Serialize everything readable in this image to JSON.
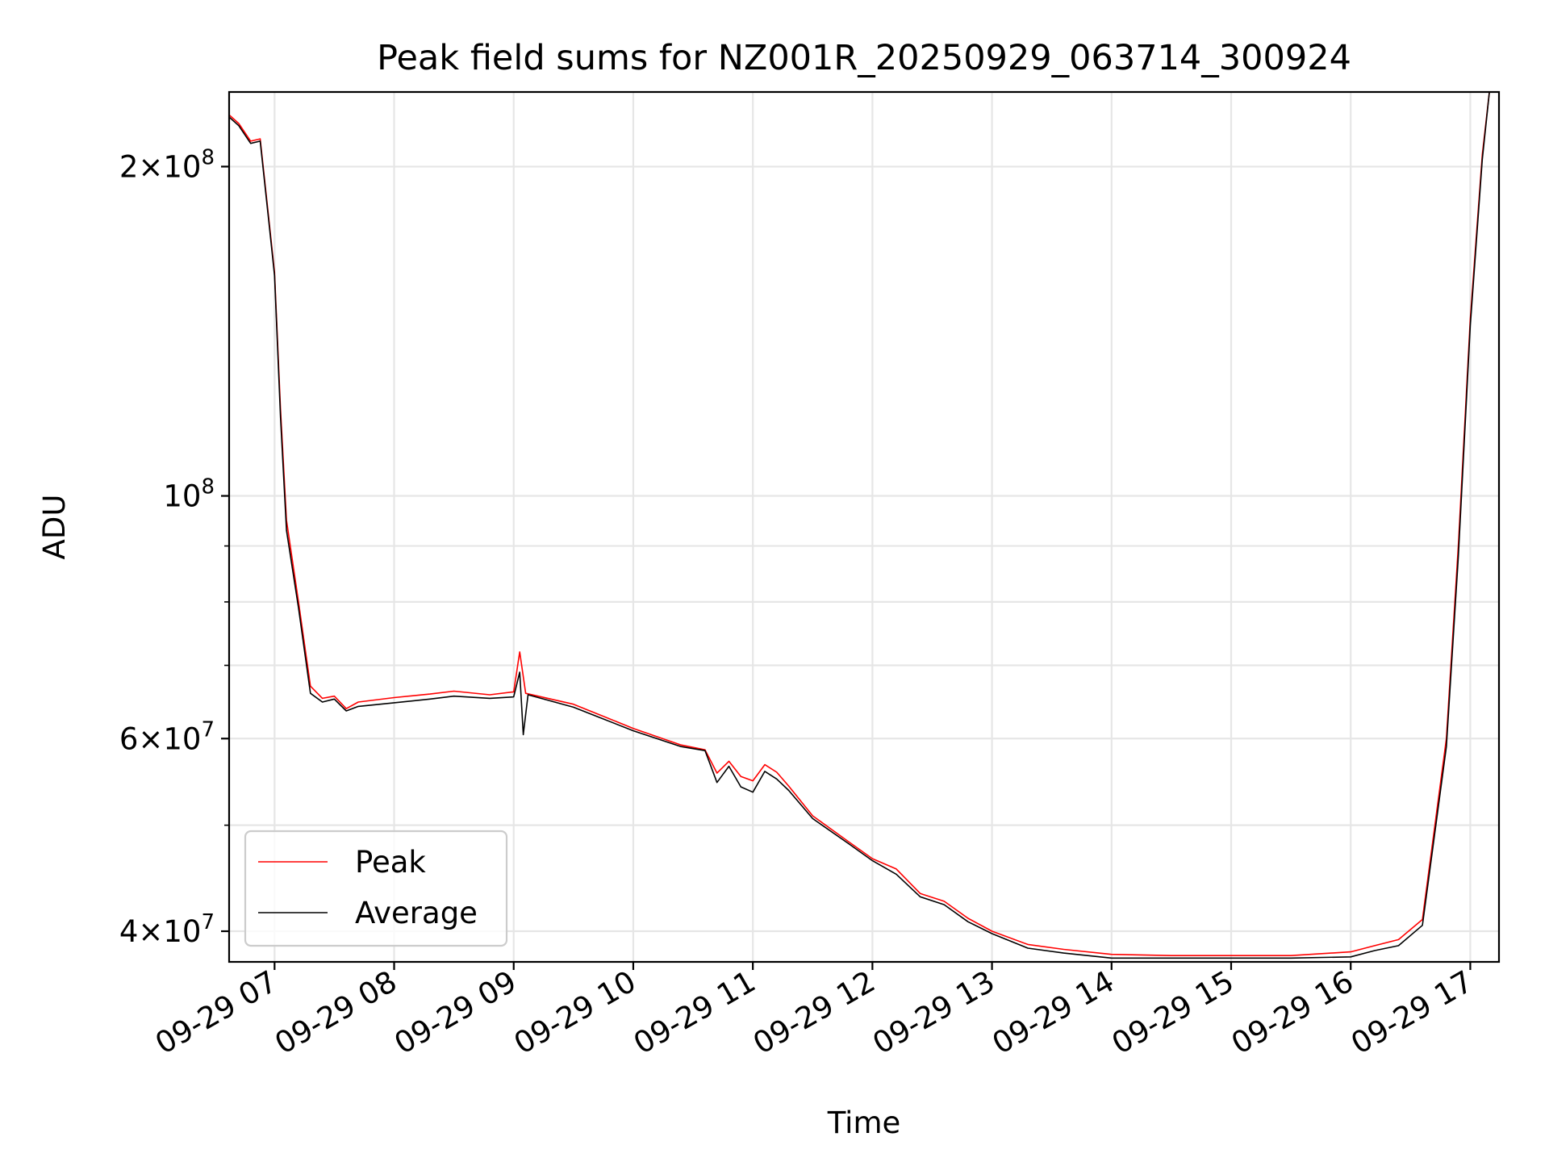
{
  "chart_data": {
    "type": "line",
    "title": "Peak field sums for NZ001R_20250929_063714_300924",
    "xlabel": "Time",
    "ylabel": "ADU",
    "y_scale": "log",
    "grid": true,
    "legend_position": "lower-left",
    "xlim_hours": [
      6.62,
      17.24
    ],
    "ylim": [
      37500000,
      234000000
    ],
    "x_ticks": [
      {
        "hour": 7,
        "label": "09-29 07"
      },
      {
        "hour": 8,
        "label": "09-29 08"
      },
      {
        "hour": 9,
        "label": "09-29 09"
      },
      {
        "hour": 10,
        "label": "09-29 10"
      },
      {
        "hour": 11,
        "label": "09-29 11"
      },
      {
        "hour": 12,
        "label": "09-29 12"
      },
      {
        "hour": 13,
        "label": "09-29 13"
      },
      {
        "hour": 14,
        "label": "09-29 14"
      },
      {
        "hour": 15,
        "label": "09-29 15"
      },
      {
        "hour": 16,
        "label": "09-29 16"
      },
      {
        "hour": 17,
        "label": "09-29 17"
      }
    ],
    "y_major_ticks": [
      {
        "value": 40000000,
        "mantissa": "4",
        "exp": "7"
      },
      {
        "value": 60000000,
        "mantissa": "6",
        "exp": "7"
      },
      {
        "value": 100000000,
        "mantissa": "",
        "exp": "8"
      },
      {
        "value": 200000000,
        "mantissa": "2",
        "exp": "8"
      }
    ],
    "y_minor_gridlines": [
      50000000,
      70000000,
      80000000,
      90000000
    ],
    "series": [
      {
        "name": "Peak",
        "color": "#ff0000",
        "points": [
          [
            6.62,
            223000000
          ],
          [
            6.7,
            219000000
          ],
          [
            6.8,
            211000000
          ],
          [
            6.88,
            212000000
          ],
          [
            6.95,
            180000000
          ],
          [
            7.0,
            160000000
          ],
          [
            7.05,
            120000000
          ],
          [
            7.1,
            95000000
          ],
          [
            7.2,
            80000000
          ],
          [
            7.3,
            67000000
          ],
          [
            7.4,
            65300000
          ],
          [
            7.5,
            65600000
          ],
          [
            7.6,
            63900000
          ],
          [
            7.7,
            64800000
          ],
          [
            8.0,
            65400000
          ],
          [
            8.3,
            65900000
          ],
          [
            8.5,
            66300000
          ],
          [
            8.8,
            65800000
          ],
          [
            9.0,
            66200000
          ],
          [
            9.05,
            72000000
          ],
          [
            9.1,
            66000000
          ],
          [
            9.5,
            64500000
          ],
          [
            10.0,
            61300000
          ],
          [
            10.4,
            59200000
          ],
          [
            10.6,
            58600000
          ],
          [
            10.7,
            55800000
          ],
          [
            10.8,
            57200000
          ],
          [
            10.9,
            55400000
          ],
          [
            11.0,
            54900000
          ],
          [
            11.1,
            56800000
          ],
          [
            11.2,
            55900000
          ],
          [
            11.3,
            54300000
          ],
          [
            11.5,
            51000000
          ],
          [
            11.8,
            48300000
          ],
          [
            12.0,
            46600000
          ],
          [
            12.2,
            45600000
          ],
          [
            12.4,
            43300000
          ],
          [
            12.6,
            42600000
          ],
          [
            12.8,
            41100000
          ],
          [
            13.0,
            40000000
          ],
          [
            13.3,
            38900000
          ],
          [
            13.6,
            38500000
          ],
          [
            14.0,
            38100000
          ],
          [
            14.5,
            38000000
          ],
          [
            15.0,
            38000000
          ],
          [
            15.5,
            38000000
          ],
          [
            16.0,
            38300000
          ],
          [
            16.2,
            38800000
          ],
          [
            16.4,
            39300000
          ],
          [
            16.6,
            41000000
          ],
          [
            16.8,
            60000000
          ],
          [
            16.9,
            90000000
          ],
          [
            17.0,
            145000000
          ],
          [
            17.1,
            205000000
          ],
          [
            17.16,
            234000000
          ]
        ]
      },
      {
        "name": "Average",
        "color": "#000000",
        "points": [
          [
            6.62,
            222000000
          ],
          [
            6.7,
            218000000
          ],
          [
            6.8,
            210000000
          ],
          [
            6.88,
            211000000
          ],
          [
            6.95,
            179000000
          ],
          [
            7.0,
            159000000
          ],
          [
            7.05,
            118000000
          ],
          [
            7.1,
            93000000
          ],
          [
            7.2,
            79000000
          ],
          [
            7.3,
            66000000
          ],
          [
            7.4,
            64800000
          ],
          [
            7.5,
            65200000
          ],
          [
            7.6,
            63600000
          ],
          [
            7.7,
            64200000
          ],
          [
            8.0,
            64700000
          ],
          [
            8.3,
            65200000
          ],
          [
            8.5,
            65600000
          ],
          [
            8.8,
            65300000
          ],
          [
            9.0,
            65500000
          ],
          [
            9.05,
            69000000
          ],
          [
            9.08,
            60500000
          ],
          [
            9.12,
            65800000
          ],
          [
            9.5,
            64100000
          ],
          [
            10.0,
            61000000
          ],
          [
            10.4,
            59000000
          ],
          [
            10.6,
            58500000
          ],
          [
            10.7,
            54700000
          ],
          [
            10.8,
            56600000
          ],
          [
            10.9,
            54200000
          ],
          [
            11.0,
            53600000
          ],
          [
            11.1,
            56000000
          ],
          [
            11.2,
            55100000
          ],
          [
            11.3,
            53800000
          ],
          [
            11.5,
            50700000
          ],
          [
            11.8,
            48100000
          ],
          [
            12.0,
            46400000
          ],
          [
            12.2,
            45100000
          ],
          [
            12.4,
            43000000
          ],
          [
            12.6,
            42300000
          ],
          [
            12.8,
            40800000
          ],
          [
            13.0,
            39800000
          ],
          [
            13.3,
            38600000
          ],
          [
            13.6,
            38200000
          ],
          [
            14.0,
            37800000
          ],
          [
            14.5,
            37800000
          ],
          [
            15.0,
            37800000
          ],
          [
            15.5,
            37800000
          ],
          [
            16.0,
            37900000
          ],
          [
            16.2,
            38400000
          ],
          [
            16.4,
            38800000
          ],
          [
            16.6,
            40500000
          ],
          [
            16.8,
            59000000
          ],
          [
            16.9,
            88000000
          ],
          [
            17.0,
            143000000
          ],
          [
            17.1,
            203000000
          ],
          [
            17.16,
            234000000
          ]
        ]
      }
    ]
  }
}
